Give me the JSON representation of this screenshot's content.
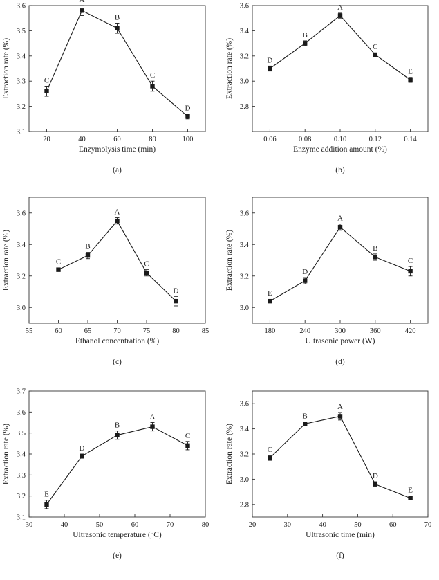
{
  "figure": {
    "background": "#ffffff",
    "axis_color": "#333333",
    "series_color": "#1a1a1a"
  },
  "chart_data": [
    {
      "type": "line",
      "panel_label": "(a)",
      "xlabel": "Enzymolysis time (min)",
      "ylabel": "Extraction rate (%)",
      "xlim": [
        10,
        110
      ],
      "ylim": [
        3.1,
        3.6
      ],
      "xticks": [
        20,
        40,
        60,
        80,
        100
      ],
      "xtick_labels": [
        "20",
        "40",
        "60",
        "80",
        "100"
      ],
      "yticks": [
        3.1,
        3.2,
        3.3,
        3.4,
        3.5,
        3.6
      ],
      "ytick_labels": [
        "3.1",
        "3.2",
        "3.3",
        "3.4",
        "3.5",
        "3.6"
      ],
      "x": [
        20,
        40,
        60,
        80,
        100
      ],
      "values": [
        3.26,
        3.58,
        3.51,
        3.28,
        3.16
      ],
      "errors": [
        0.02,
        0.02,
        0.02,
        0.02,
        0.01
      ],
      "labels": [
        "C",
        "A",
        "B",
        "C",
        "D"
      ]
    },
    {
      "type": "line",
      "panel_label": "(b)",
      "xlabel": "Enzyme addition amount (%)",
      "ylabel": "Extraction rate (%)",
      "xlim": [
        0.05,
        0.15
      ],
      "ylim": [
        2.6,
        3.6
      ],
      "xticks": [
        0.06,
        0.08,
        0.1,
        0.12,
        0.14
      ],
      "xtick_labels": [
        "0.06",
        "0.08",
        "0.10",
        "0.12",
        "0.14"
      ],
      "yticks": [
        2.8,
        3.0,
        3.2,
        3.4,
        3.6
      ],
      "ytick_labels": [
        "2.8",
        "3.0",
        "3.2",
        "3.4",
        "3.6"
      ],
      "x": [
        0.06,
        0.08,
        0.1,
        0.12,
        0.14
      ],
      "values": [
        3.1,
        3.3,
        3.52,
        3.21,
        3.01
      ],
      "errors": [
        0.02,
        0.02,
        0.02,
        0.01,
        0.02
      ],
      "labels": [
        "D",
        "B",
        "A",
        "C",
        "E"
      ]
    },
    {
      "type": "line",
      "panel_label": "(c)",
      "xlabel": "Ethanol concentration (%)",
      "ylabel": "Extraction rate (%)",
      "xlim": [
        55,
        85
      ],
      "ylim": [
        2.9,
        3.7
      ],
      "xticks": [
        55,
        60,
        65,
        70,
        75,
        80,
        85
      ],
      "xtick_labels": [
        "55",
        "60",
        "65",
        "70",
        "75",
        "80",
        "85"
      ],
      "yticks": [
        3.0,
        3.2,
        3.4,
        3.6
      ],
      "ytick_labels": [
        "3.0",
        "3.2",
        "3.4",
        "3.6"
      ],
      "x": [
        60,
        65,
        70,
        75,
        80
      ],
      "values": [
        3.24,
        3.33,
        3.55,
        3.22,
        3.04
      ],
      "errors": [
        0.01,
        0.02,
        0.02,
        0.02,
        0.03
      ],
      "labels": [
        "C",
        "B",
        "A",
        "C",
        "D"
      ]
    },
    {
      "type": "line",
      "panel_label": "(d)",
      "xlabel": "Ultrasonic power (W)",
      "ylabel": "Extraction rate (%)",
      "xlim": [
        150,
        450
      ],
      "ylim": [
        2.9,
        3.7
      ],
      "xticks": [
        180,
        240,
        300,
        360,
        420
      ],
      "xtick_labels": [
        "180",
        "240",
        "300",
        "360",
        "420"
      ],
      "yticks": [
        3.0,
        3.2,
        3.4,
        3.6
      ],
      "ytick_labels": [
        "3.0",
        "3.2",
        "3.4",
        "3.6"
      ],
      "x": [
        180,
        240,
        300,
        360,
        420
      ],
      "values": [
        3.04,
        3.17,
        3.51,
        3.32,
        3.23
      ],
      "errors": [
        0.01,
        0.02,
        0.02,
        0.02,
        0.03
      ],
      "labels": [
        "E",
        "D",
        "A",
        "B",
        "C"
      ]
    },
    {
      "type": "line",
      "panel_label": "(e)",
      "xlabel": "Ultrasonic temperature (°C)",
      "ylabel": "Extraction rate (%)",
      "xlim": [
        30,
        80
      ],
      "ylim": [
        3.1,
        3.7
      ],
      "xticks": [
        30,
        40,
        50,
        60,
        70,
        80
      ],
      "xtick_labels": [
        "30",
        "40",
        "50",
        "60",
        "70",
        "80"
      ],
      "yticks": [
        3.1,
        3.2,
        3.3,
        3.4,
        3.5,
        3.6,
        3.7
      ],
      "ytick_labels": [
        "3.1",
        "3.2",
        "3.3",
        "3.4",
        "3.5",
        "3.6",
        "3.7"
      ],
      "x": [
        35,
        45,
        55,
        65,
        75
      ],
      "values": [
        3.16,
        3.39,
        3.49,
        3.53,
        3.44
      ],
      "errors": [
        0.02,
        0.01,
        0.02,
        0.02,
        0.02
      ],
      "labels": [
        "E",
        "D",
        "B",
        "A",
        "C"
      ]
    },
    {
      "type": "line",
      "panel_label": "(f)",
      "xlabel": "Ultrasonic time (min)",
      "ylabel": "Extraction rate (%)",
      "xlim": [
        20,
        70
      ],
      "ylim": [
        2.7,
        3.7
      ],
      "xticks": [
        20,
        30,
        40,
        50,
        60,
        70
      ],
      "xtick_labels": [
        "20",
        "30",
        "40",
        "50",
        "60",
        "70"
      ],
      "yticks": [
        2.8,
        3.0,
        3.2,
        3.4,
        3.6
      ],
      "ytick_labels": [
        "2.8",
        "3.0",
        "3.2",
        "3.4",
        "3.6"
      ],
      "x": [
        25,
        35,
        45,
        55,
        65
      ],
      "values": [
        3.17,
        3.44,
        3.5,
        2.96,
        2.85
      ],
      "errors": [
        0.02,
        0.01,
        0.03,
        0.02,
        0.01
      ],
      "labels": [
        "C",
        "B",
        "A",
        "D",
        "E"
      ]
    }
  ]
}
